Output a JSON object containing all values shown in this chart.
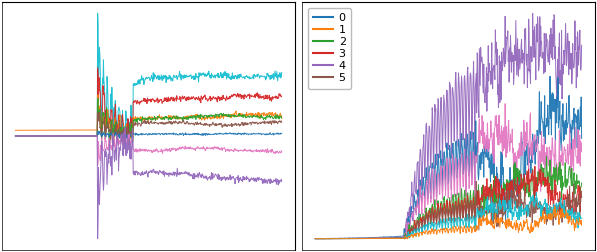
{
  "n_points": 600,
  "mean_colors": [
    "#17becf",
    "#d62728",
    "#ff7f0e",
    "#2ca02c",
    "#8c564b",
    "#1f77b4",
    "#e377c2",
    "#9467bd"
  ],
  "std_colors": [
    "#9467bd",
    "#1f77b4",
    "#e377c2",
    "#2ca02c",
    "#d62728",
    "#8c564b",
    "#17becf",
    "#ff7f0e"
  ],
  "legend_labels": [
    "0",
    "1",
    "2",
    "3",
    "4",
    "5"
  ],
  "legend_colors": [
    "#1f77b4",
    "#ff7f0e",
    "#2ca02c",
    "#d62728",
    "#9467bd",
    "#8c564b"
  ],
  "background_color": "#ffffff",
  "figsize": [
    5.97,
    2.52
  ],
  "dpi": 100
}
